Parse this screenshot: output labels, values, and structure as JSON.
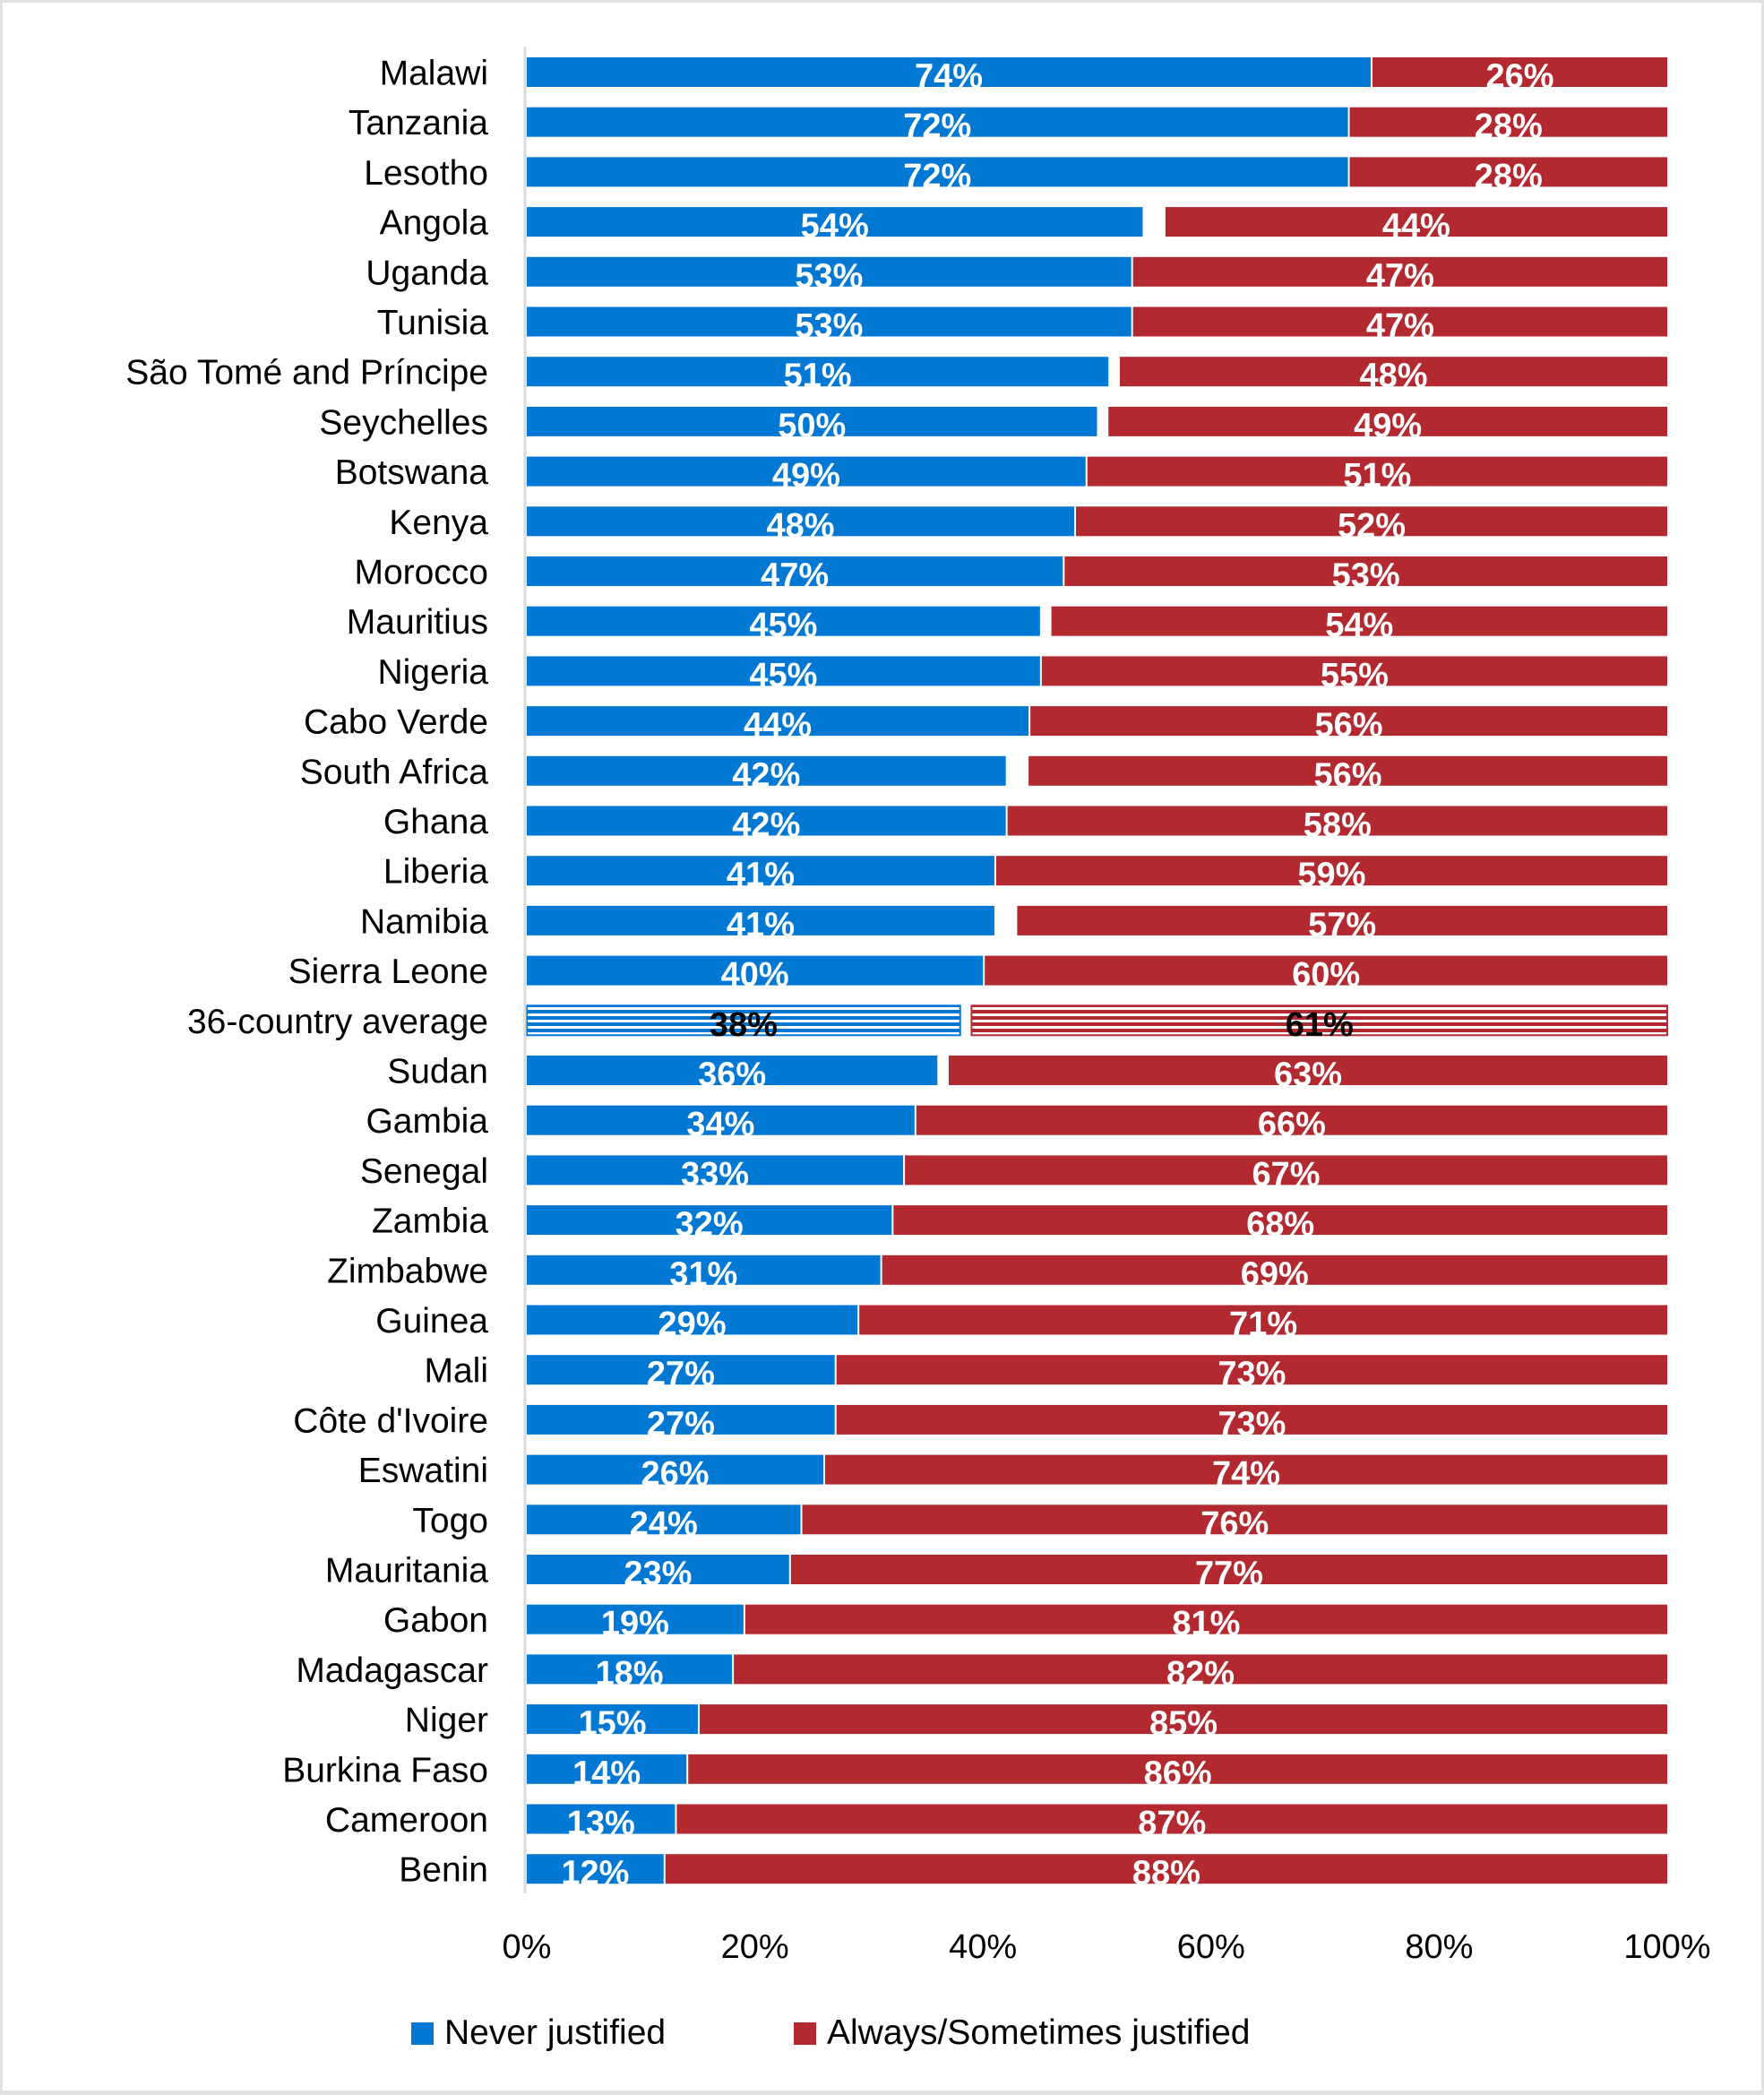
{
  "chart_data": {
    "type": "bar",
    "orientation": "horizontal",
    "stacked": true,
    "title": "",
    "xlabel": "",
    "ylabel": "",
    "xlim": [
      0,
      100
    ],
    "x_ticks": [
      "0%",
      "20%",
      "40%",
      "60%",
      "80%",
      "100%"
    ],
    "grid": false,
    "legend_position": "bottom",
    "categories": [
      "Malawi",
      "Tanzania",
      "Lesotho",
      "Angola",
      "Uganda",
      "Tunisia",
      "São Tomé and Príncipe",
      "Seychelles",
      "Botswana",
      "Kenya",
      "Morocco",
      "Mauritius",
      "Nigeria",
      "Cabo Verde",
      "South Africa",
      "Ghana",
      "Liberia",
      "Namibia",
      "Sierra Leone",
      "36-country average",
      "Sudan",
      "Gambia",
      "Senegal",
      "Zambia",
      "Zimbabwe",
      "Guinea",
      "Mali",
      "Côte d'Ivoire",
      "Eswatini",
      "Togo",
      "Mauritania",
      "Gabon",
      "Madagascar",
      "Niger",
      "Burkina Faso",
      "Cameroon",
      "Benin"
    ],
    "highlight_category": "36-country average",
    "series": [
      {
        "name": "Never justified",
        "color": "#0078D4",
        "values": [
          74,
          72,
          72,
          54,
          53,
          53,
          51,
          50,
          49,
          48,
          47,
          45,
          45,
          44,
          42,
          42,
          41,
          41,
          40,
          38,
          36,
          34,
          33,
          32,
          31,
          29,
          27,
          27,
          26,
          24,
          23,
          19,
          18,
          15,
          14,
          13,
          12
        ]
      },
      {
        "name": "Always/Sometimes justified",
        "color": "#B22930",
        "values": [
          26,
          28,
          28,
          44,
          47,
          47,
          48,
          49,
          51,
          52,
          53,
          54,
          55,
          56,
          56,
          58,
          59,
          57,
          60,
          61,
          63,
          66,
          67,
          68,
          69,
          71,
          73,
          73,
          74,
          76,
          77,
          81,
          82,
          85,
          86,
          87,
          88
        ]
      }
    ]
  },
  "legend": {
    "items": [
      {
        "label": "Never justified",
        "color": "#0078D4"
      },
      {
        "label": "Always/Sometimes justified",
        "color": "#B22930"
      }
    ]
  }
}
